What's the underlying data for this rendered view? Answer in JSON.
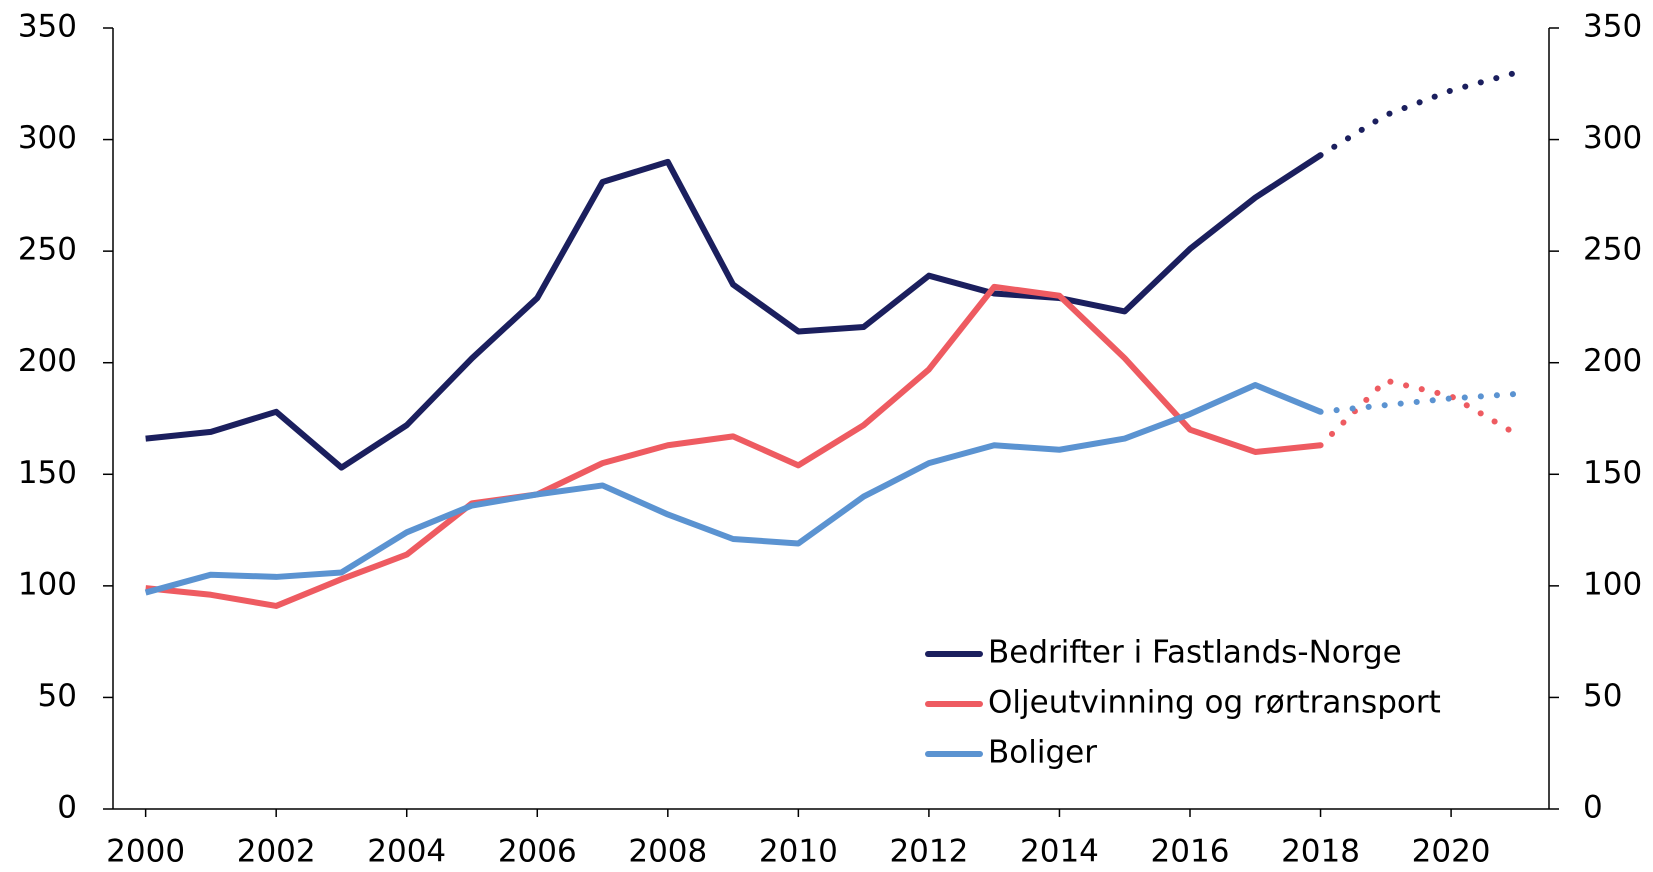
{
  "chart_data": {
    "type": "line",
    "x": [
      2000,
      2001,
      2002,
      2003,
      2004,
      2005,
      2006,
      2007,
      2008,
      2009,
      2010,
      2011,
      2012,
      2013,
      2014,
      2015,
      2016,
      2017,
      2018,
      2019,
      2020,
      2021
    ],
    "series": [
      {
        "name": "Bedrifter i Fastlands-Norge",
        "color": "#1b1f5e",
        "values": [
          166,
          169,
          178,
          153,
          172,
          202,
          229,
          281,
          290,
          235,
          214,
          216,
          239,
          231,
          229,
          223,
          251,
          274,
          293,
          311,
          322,
          330
        ]
      },
      {
        "name": "Oljeutvinning og rørtransport",
        "color": "#ee5b61",
        "values": [
          99,
          96,
          91,
          103,
          114,
          137,
          141,
          155,
          163,
          167,
          154,
          172,
          197,
          234,
          230,
          202,
          170,
          160,
          163,
          192,
          185,
          168
        ]
      },
      {
        "name": "Boliger",
        "color": "#5b93d1",
        "values": [
          97,
          105,
          104,
          106,
          124,
          136,
          141,
          145,
          132,
          121,
          119,
          140,
          155,
          163,
          161,
          166,
          177,
          190,
          178,
          181,
          184,
          186
        ]
      }
    ],
    "forecast_start": 2018,
    "xlim": [
      1999.5,
      2021.5
    ],
    "xticks": [
      2000,
      2002,
      2004,
      2006,
      2008,
      2010,
      2012,
      2014,
      2016,
      2018,
      2020
    ],
    "ylim": [
      0,
      350
    ],
    "yticks": [
      0,
      50,
      100,
      150,
      200,
      250,
      300,
      350
    ],
    "y2lim": [
      0,
      350
    ],
    "y2ticks": [
      0,
      50,
      100,
      150,
      200,
      250,
      300,
      350
    ],
    "legend": "lower right",
    "grid": false
  }
}
